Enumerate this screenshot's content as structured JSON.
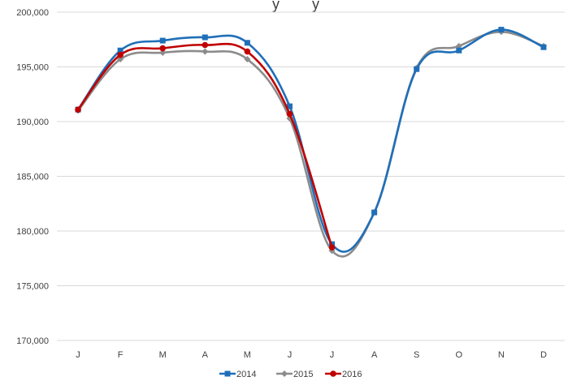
{
  "chart_data": {
    "type": "line",
    "title": "",
    "title_visible_fragment": "y        y",
    "xlabel": "",
    "ylabel": "",
    "categories": [
      "J",
      "F",
      "M",
      "A",
      "M",
      "J",
      "J",
      "A",
      "S",
      "O",
      "N",
      "D"
    ],
    "y_ticks": [
      "170,000",
      "175,000",
      "180,000",
      "185,000",
      "190,000",
      "195,000",
      "200,000"
    ],
    "ylim": [
      170000,
      200000
    ],
    "grid": "horizontal",
    "legend_position": "bottom",
    "series": [
      {
        "name": "2014",
        "color": "#1F6FB8",
        "marker": "square",
        "values": [
          191100,
          196500,
          197400,
          197700,
          197200,
          191400,
          178800,
          181700,
          194800,
          196500,
          198400,
          196800
        ]
      },
      {
        "name": "2015",
        "color": "#8C8C8C",
        "marker": "diamond",
        "values": [
          191000,
          195700,
          196300,
          196400,
          195700,
          190300,
          178200,
          181700,
          194900,
          196900,
          198200,
          196900
        ]
      },
      {
        "name": "2016",
        "color": "#C00000",
        "marker": "circle",
        "values": [
          191100,
          196100,
          196700,
          197000,
          196400,
          190700,
          178500,
          null,
          null,
          null,
          null,
          null
        ]
      }
    ]
  }
}
